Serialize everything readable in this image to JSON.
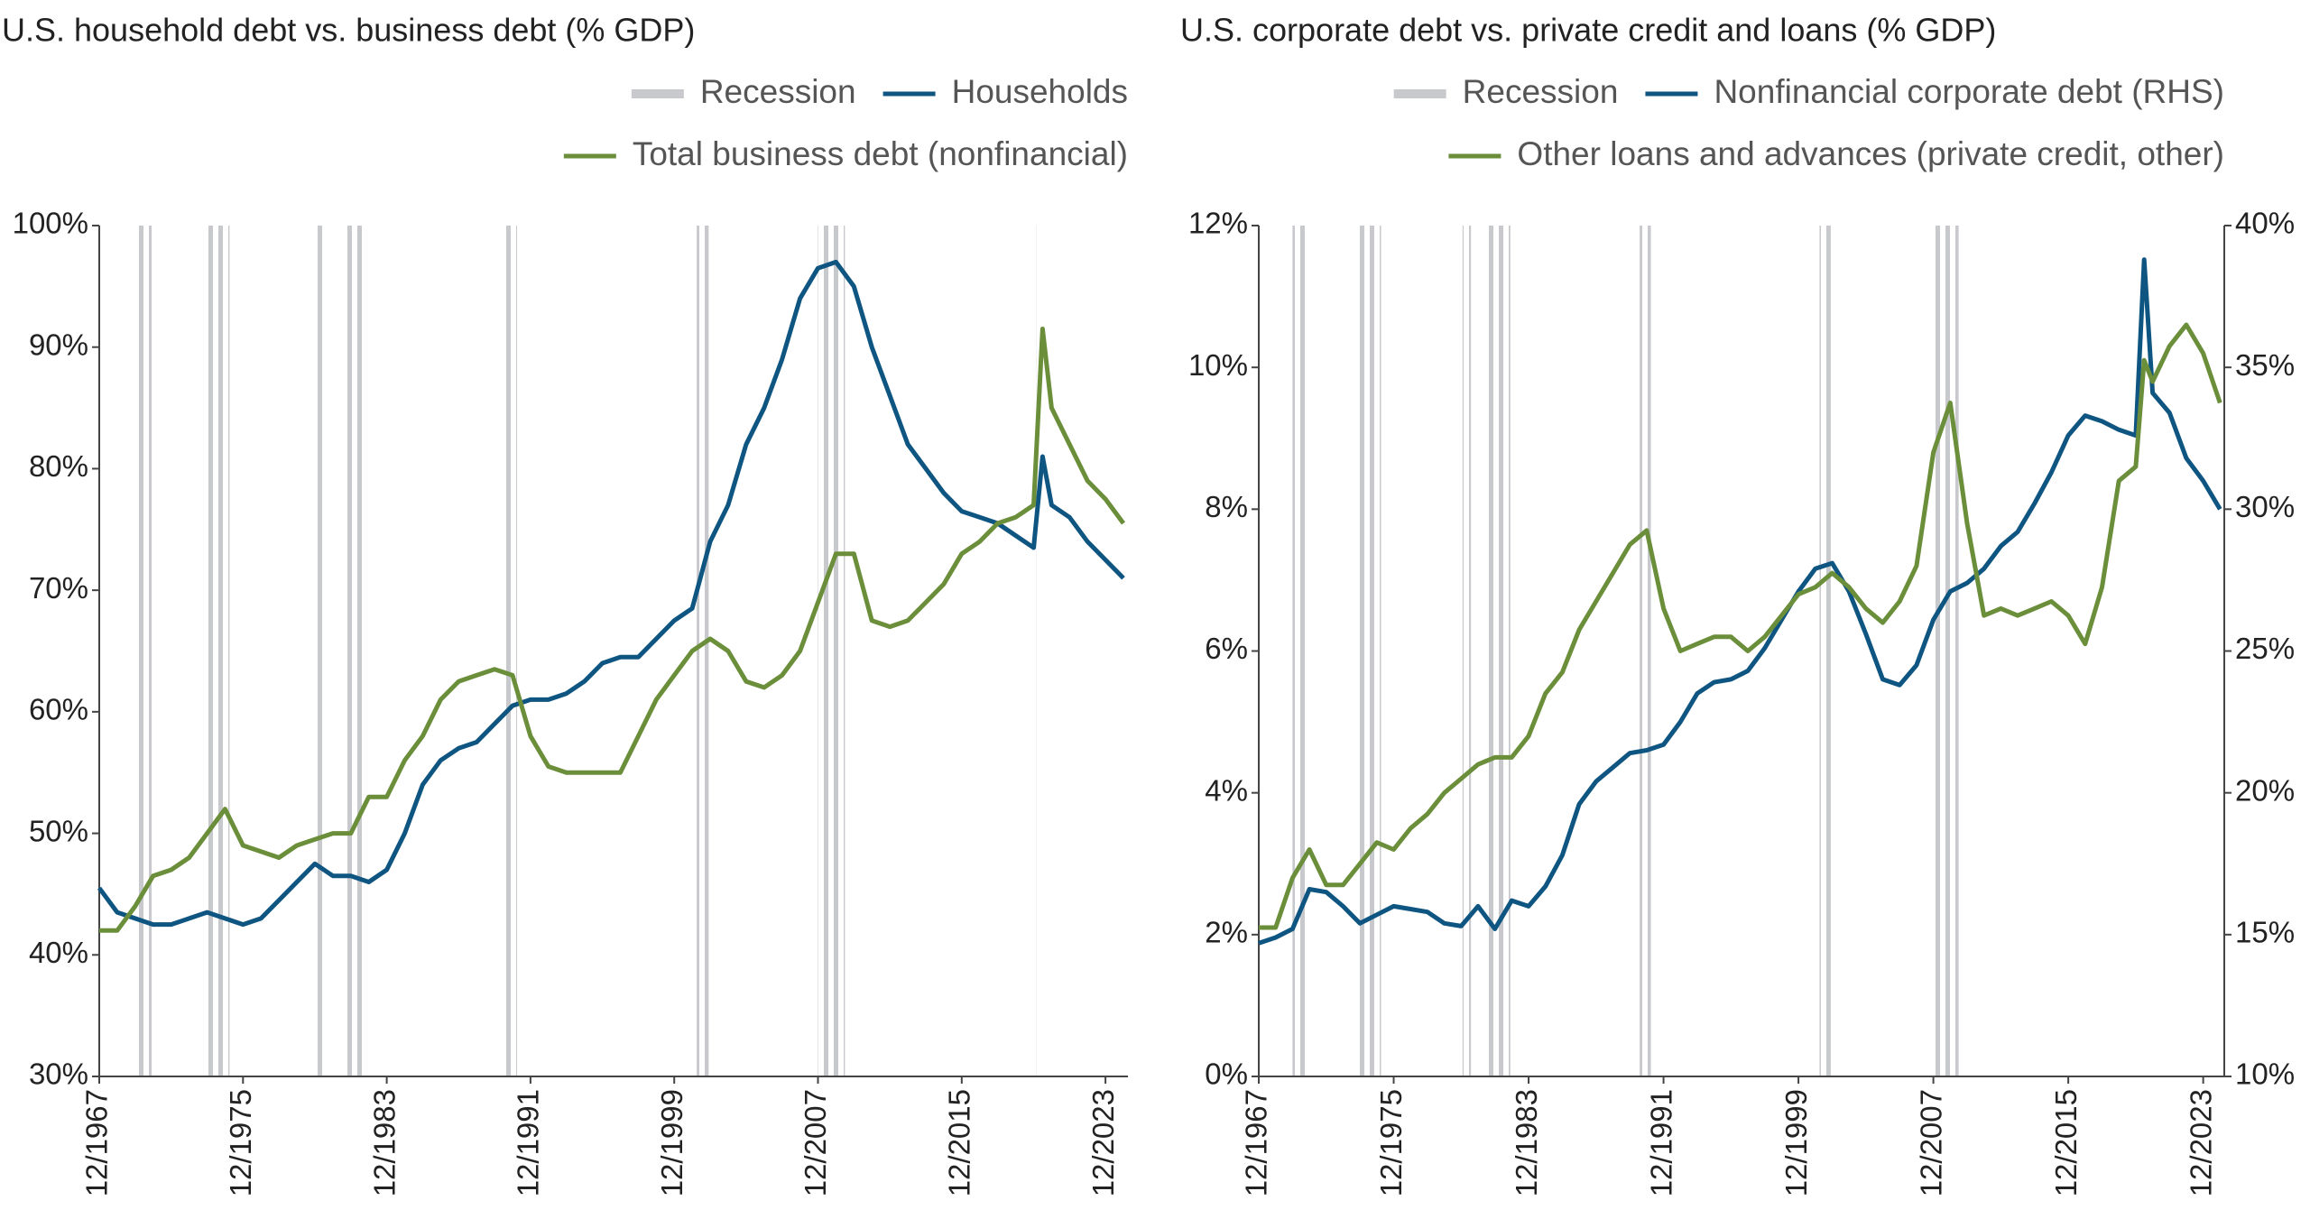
{
  "chart_data": [
    {
      "type": "line",
      "title": "U.S. household debt vs. business debt (% GDP)",
      "x": [
        "12/1967",
        "12/1968",
        "12/1969",
        "12/1970",
        "12/1971",
        "12/1972",
        "12/1973",
        "12/1974",
        "12/1975",
        "12/1976",
        "12/1977",
        "12/1978",
        "12/1979",
        "12/1980",
        "12/1981",
        "12/1982",
        "12/1983",
        "12/1984",
        "12/1985",
        "12/1986",
        "12/1987",
        "12/1988",
        "12/1989",
        "12/1990",
        "12/1991",
        "12/1992",
        "12/1993",
        "12/1994",
        "12/1995",
        "12/1996",
        "12/1997",
        "12/1998",
        "12/1999",
        "12/2000",
        "12/2001",
        "12/2002",
        "12/2003",
        "12/2004",
        "12/2005",
        "12/2006",
        "12/2007",
        "12/2008",
        "12/2009",
        "12/2010",
        "12/2011",
        "12/2012",
        "12/2013",
        "12/2014",
        "12/2015",
        "12/2016",
        "12/2017",
        "12/2018",
        "12/2019",
        "06/2020",
        "12/2020",
        "12/2021",
        "12/2022",
        "12/2023",
        "12/2024"
      ],
      "series": [
        {
          "name": "Households",
          "color": "#0f5581",
          "values": [
            45.5,
            43.5,
            43,
            42.5,
            42.5,
            43,
            43.5,
            43,
            42.5,
            43,
            44.5,
            46,
            47.5,
            46.5,
            46.5,
            46,
            47,
            50,
            54,
            56,
            57,
            57.5,
            59,
            60.5,
            61,
            61,
            61.5,
            62.5,
            64,
            64.5,
            64.5,
            66,
            67.5,
            68.5,
            74,
            77,
            82,
            85,
            89,
            94,
            96.5,
            97,
            95,
            90,
            86,
            82,
            80,
            78,
            76.5,
            76,
            75.5,
            74.5,
            73.5,
            81,
            77,
            76,
            74,
            72.5,
            71
          ]
        },
        {
          "name": "Total business debt (nonfinancial)",
          "color": "#6b8e3a",
          "values": [
            42,
            42,
            44,
            46.5,
            47,
            48,
            50,
            52,
            49,
            48.5,
            48,
            49,
            49.5,
            50,
            50,
            53,
            53,
            56,
            58,
            61,
            62.5,
            63,
            63.5,
            63,
            58,
            55.5,
            55,
            55,
            55,
            55,
            58,
            61,
            63,
            65,
            66,
            65,
            62.5,
            62,
            63,
            65,
            69,
            73,
            73,
            67.5,
            67,
            67.5,
            69,
            70.5,
            73,
            74,
            75.5,
            76,
            77,
            91.5,
            85,
            82,
            79,
            77.5,
            75.5
          ]
        }
      ],
      "recession": {
        "name": "Recession",
        "color": "#c8c9cc",
        "periods": [
          [
            "12/1969",
            "11/1970"
          ],
          [
            "11/1973",
            "03/1975"
          ],
          [
            "01/1980",
            "07/1980"
          ],
          [
            "07/1981",
            "11/1982"
          ],
          [
            "07/1990",
            "03/1991"
          ],
          [
            "03/2001",
            "11/2001"
          ],
          [
            "12/2007",
            "06/2009"
          ],
          [
            "02/2020",
            "04/2020"
          ]
        ]
      },
      "xlim": [
        "12/1967",
        "03/2025"
      ],
      "xticks": [
        "12/1967",
        "12/1975",
        "12/1983",
        "12/1991",
        "12/1999",
        "12/2007",
        "12/2015",
        "12/2023"
      ],
      "ylim": [
        30,
        100
      ],
      "yticks": [
        {
          "value": 30,
          "label": "30%"
        },
        {
          "value": 40,
          "label": "40%"
        },
        {
          "value": 50,
          "label": "50%"
        },
        {
          "value": 60,
          "label": "60%"
        },
        {
          "value": 70,
          "label": "70%"
        },
        {
          "value": 80,
          "label": "80%"
        },
        {
          "value": 90,
          "label": "90%"
        },
        {
          "value": 100,
          "label": "100%"
        }
      ]
    },
    {
      "type": "line",
      "title": "U.S. corporate debt vs. private credit and loans (% GDP)",
      "x": [
        "12/1967",
        "12/1968",
        "12/1969",
        "12/1970",
        "12/1971",
        "12/1972",
        "12/1973",
        "12/1974",
        "12/1975",
        "12/1976",
        "12/1977",
        "12/1978",
        "12/1979",
        "12/1980",
        "12/1981",
        "12/1982",
        "12/1983",
        "12/1984",
        "12/1985",
        "12/1986",
        "12/1987",
        "12/1988",
        "12/1989",
        "12/1990",
        "12/1991",
        "12/1992",
        "12/1993",
        "12/1994",
        "12/1995",
        "12/1996",
        "12/1997",
        "12/1998",
        "12/1999",
        "12/2000",
        "12/2001",
        "12/2002",
        "12/2003",
        "12/2004",
        "12/2005",
        "12/2006",
        "12/2007",
        "12/2008",
        "12/2009",
        "12/2010",
        "12/2011",
        "12/2012",
        "12/2013",
        "12/2014",
        "12/2015",
        "12/2016",
        "12/2017",
        "12/2018",
        "12/2019",
        "06/2020",
        "12/2020",
        "12/2021",
        "12/2022",
        "12/2023",
        "12/2024"
      ],
      "series": [
        {
          "name": "Nonfinancial corporate debt (RHS)",
          "color": "#0f5581",
          "axis": "y2",
          "values": [
            14.7,
            14.9,
            15.2,
            16.6,
            16.5,
            16.0,
            15.4,
            15.7,
            16.0,
            15.9,
            15.8,
            15.4,
            15.3,
            16.0,
            15.2,
            16.2,
            16.0,
            16.7,
            17.8,
            19.6,
            20.4,
            20.9,
            21.4,
            21.5,
            21.7,
            22.5,
            23.5,
            23.9,
            24.0,
            24.3,
            25.1,
            26.1,
            27.1,
            27.9,
            28.1,
            27.1,
            25.6,
            24.0,
            23.8,
            24.5,
            26.1,
            27.1,
            27.4,
            27.9,
            28.7,
            29.2,
            30.2,
            31.3,
            32.6,
            33.3,
            33.1,
            32.8,
            32.6,
            38.8,
            34.1,
            33.4,
            31.8,
            31.0,
            30.0
          ]
        },
        {
          "name": "Other loans and advances (private credit, other)",
          "color": "#6b8e3a",
          "values": [
            2.1,
            2.1,
            2.8,
            3.2,
            2.7,
            2.7,
            3.0,
            3.3,
            3.2,
            3.5,
            3.7,
            4.0,
            4.2,
            4.4,
            4.5,
            4.5,
            4.8,
            5.4,
            5.7,
            6.3,
            6.7,
            7.1,
            7.5,
            7.7,
            6.6,
            6.0,
            6.1,
            6.2,
            6.2,
            6.0,
            6.2,
            6.5,
            6.8,
            6.9,
            7.1,
            6.9,
            6.6,
            6.4,
            6.7,
            7.2,
            8.8,
            9.5,
            7.8,
            6.5,
            6.6,
            6.5,
            6.6,
            6.7,
            6.5,
            6.1,
            6.9,
            8.4,
            8.6,
            10.1,
            9.8,
            10.3,
            10.6,
            10.2,
            9.5
          ]
        }
      ],
      "recession": {
        "name": "Recession",
        "color": "#c8c9cc",
        "periods": [
          [
            "12/1969",
            "11/1970"
          ],
          [
            "11/1973",
            "03/1975"
          ],
          [
            "01/1980",
            "07/1980"
          ],
          [
            "07/1981",
            "11/1982"
          ],
          [
            "07/1990",
            "03/1991"
          ],
          [
            "03/2001",
            "11/2001"
          ],
          [
            "12/2007",
            "06/2009"
          ],
          [
            "02/2020",
            "04/2020"
          ]
        ]
      },
      "xlim": [
        "12/1967",
        "03/2025"
      ],
      "xticks": [
        "12/1967",
        "12/1975",
        "12/1983",
        "12/1991",
        "12/1999",
        "12/2007",
        "12/2015",
        "12/2023"
      ],
      "ylim": [
        0,
        12
      ],
      "yticks": [
        {
          "value": 0,
          "label": "0%"
        },
        {
          "value": 2,
          "label": "2%"
        },
        {
          "value": 4,
          "label": "4%"
        },
        {
          "value": 6,
          "label": "6%"
        },
        {
          "value": 8,
          "label": "8%"
        },
        {
          "value": 10,
          "label": "10%"
        },
        {
          "value": 12,
          "label": "12%"
        }
      ],
      "y2lim": [
        10,
        40
      ],
      "y2ticks": [
        {
          "value": 10,
          "label": "10%"
        },
        {
          "value": 15,
          "label": "15%"
        },
        {
          "value": 20,
          "label": "20%"
        },
        {
          "value": 25,
          "label": "25%"
        },
        {
          "value": 30,
          "label": "30%"
        },
        {
          "value": 35,
          "label": "35%"
        },
        {
          "value": 40,
          "label": "40%"
        }
      ]
    }
  ]
}
